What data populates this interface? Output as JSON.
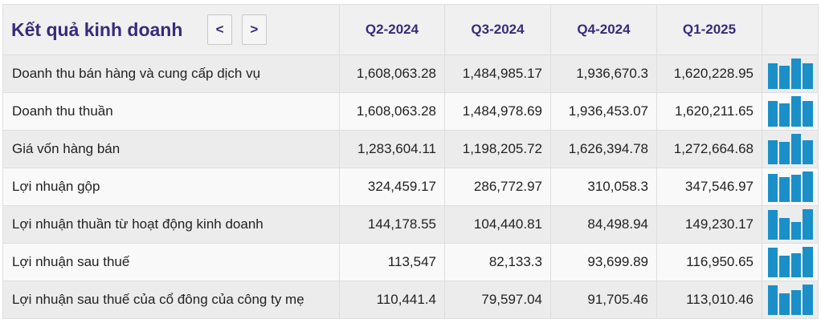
{
  "header": {
    "title": "Kết quả kinh doanh",
    "prev_label": "<",
    "next_label": ">",
    "quarters": [
      "Q2-2024",
      "Q3-2024",
      "Q4-2024",
      "Q1-2025"
    ]
  },
  "rows": [
    {
      "label": "Doanh thu bán hàng và cung cấp dịch vụ",
      "values": [
        "1,608,063.28",
        "1,484,985.17",
        "1,936,670.3",
        "1,620,228.95"
      ],
      "spark": [
        1608063.28,
        1484985.17,
        1936670.3,
        1620228.95
      ]
    },
    {
      "label": "Doanh thu thuần",
      "values": [
        "1,608,063.28",
        "1,484,978.69",
        "1,936,453.07",
        "1,620,211.65"
      ],
      "spark": [
        1608063.28,
        1484978.69,
        1936453.07,
        1620211.65
      ]
    },
    {
      "label": "Giá vốn hàng bán",
      "values": [
        "1,283,604.11",
        "1,198,205.72",
        "1,626,394.78",
        "1,272,664.68"
      ],
      "spark": [
        1283604.11,
        1198205.72,
        1626394.78,
        1272664.68
      ]
    },
    {
      "label": "Lợi nhuận gộp",
      "values": [
        "324,459.17",
        "286,772.97",
        "310,058.3",
        "347,546.97"
      ],
      "spark": [
        324459.17,
        286772.97,
        310058.3,
        347546.97
      ]
    },
    {
      "label": "Lợi nhuận thuần từ hoạt động kinh doanh",
      "values": [
        "144,178.55",
        "104,440.81",
        "84,498.94",
        "149,230.17"
      ],
      "spark": [
        144178.55,
        104440.81,
        84498.94,
        149230.17
      ]
    },
    {
      "label": "Lợi nhuận sau thuế",
      "values": [
        "113,547",
        "82,133.3",
        "93,699.89",
        "116,950.65"
      ],
      "spark": [
        113547,
        82133.3,
        93699.89,
        116950.65
      ]
    },
    {
      "label": "Lợi nhuận sau thuế của cổ đông của công ty mẹ",
      "values": [
        "110,441.4",
        "79,597.04",
        "91,705.46",
        "113,010.46"
      ],
      "spark": [
        110441.4,
        79597.04,
        91705.46,
        113010.46
      ]
    }
  ],
  "colors": {
    "title": "#3a2a7a",
    "spark_bar": "#1a8fc8"
  }
}
